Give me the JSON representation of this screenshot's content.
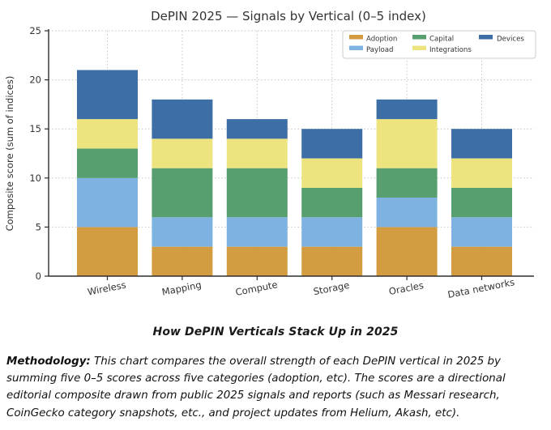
{
  "chart_data": {
    "type": "bar",
    "stacked": true,
    "title": "DePIN 2025 — Signals by Vertical (0–5 index)",
    "ylabel": "Composite score (sum of indices)",
    "xlabel": "",
    "categories": [
      "Wireless",
      "Mapping",
      "Compute",
      "Storage",
      "Oracles",
      "Data networks"
    ],
    "series": [
      {
        "name": "Adoption",
        "color": "#D49C41",
        "values": [
          5,
          3,
          3,
          3,
          5,
          3
        ]
      },
      {
        "name": "Payload",
        "color": "#7DB2E1",
        "values": [
          5,
          3,
          3,
          3,
          3,
          3
        ]
      },
      {
        "name": "Capital",
        "color": "#579F6E",
        "values": [
          3,
          5,
          5,
          3,
          3,
          3
        ]
      },
      {
        "name": "Integrations",
        "color": "#EDE480",
        "values": [
          3,
          3,
          3,
          3,
          5,
          3
        ]
      },
      {
        "name": "Devices",
        "color": "#3D6FA6",
        "values": [
          5,
          4,
          2,
          3,
          2,
          3
        ]
      }
    ],
    "totals": [
      21,
      18,
      16,
      15,
      18,
      15
    ],
    "ylim": [
      0,
      25
    ],
    "yticks": [
      0,
      5,
      10,
      15,
      20,
      25
    ],
    "grid": true,
    "legend_position": "upper right",
    "legend_columns": 3,
    "colors": {
      "spine": "#2e2e2e",
      "grid": "#c4c4c4",
      "tick_label": "#333333",
      "title": "#333333"
    }
  },
  "caption": "How DePIN Verticals Stack Up in 2025",
  "methodology": {
    "label": "Methodology:",
    "text": " This chart compares the overall strength of each DePIN vertical in 2025 by summing five 0–5 scores across five categories (adoption, etc). The scores are a directional editorial composite drawn from public 2025 signals and reports (such as Messari research, CoinGecko category snapshots, etc., and project updates from Helium, Akash, etc)."
  }
}
